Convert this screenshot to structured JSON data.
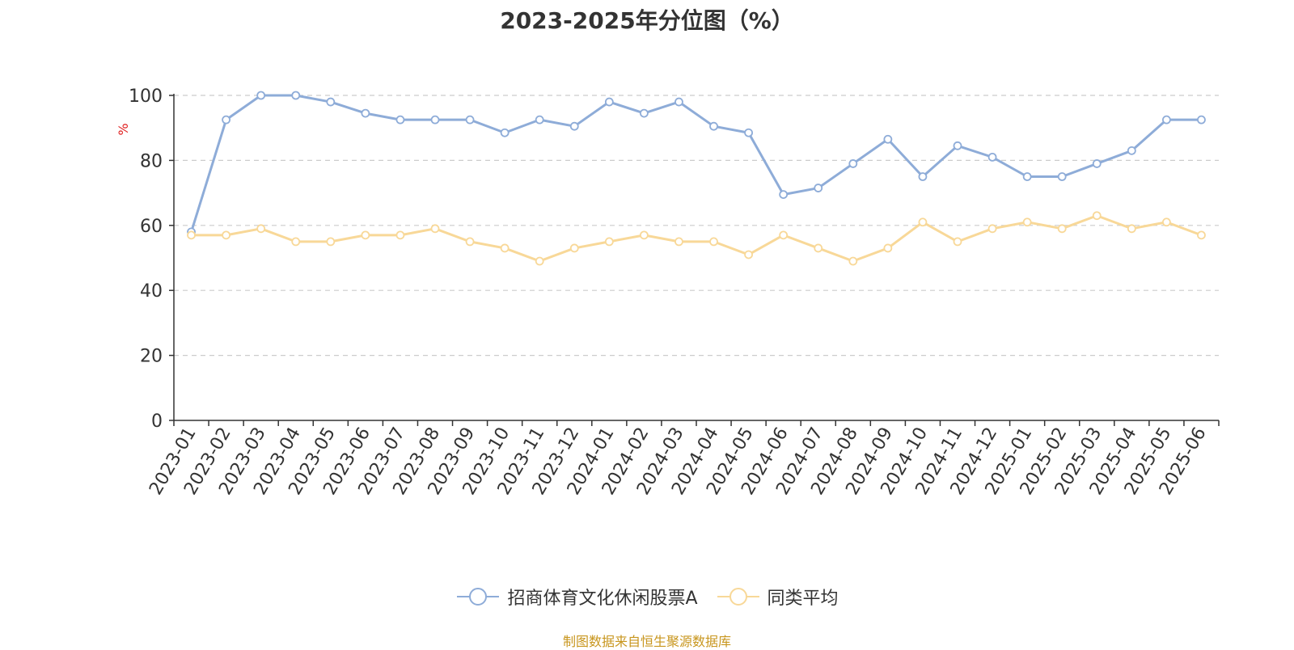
{
  "chart_data": {
    "type": "line",
    "title": "2023-2025年分位图（%）",
    "ylabel": "%",
    "ylim": [
      0,
      100
    ],
    "yticks": [
      0,
      20,
      40,
      60,
      80,
      100
    ],
    "grid": true,
    "legend_position": "bottom",
    "categories": [
      "2023-01",
      "2023-02",
      "2023-03",
      "2023-04",
      "2023-05",
      "2023-06",
      "2023-07",
      "2023-08",
      "2023-09",
      "2023-10",
      "2023-11",
      "2023-12",
      "2024-01",
      "2024-02",
      "2024-03",
      "2024-04",
      "2024-05",
      "2024-06",
      "2024-07",
      "2024-08",
      "2024-09",
      "2024-10",
      "2024-11",
      "2024-12",
      "2025-01",
      "2025-02",
      "2025-03",
      "2025-04",
      "2025-05",
      "2025-06"
    ],
    "series": [
      {
        "name": "招商体育文化休闲股票A",
        "color": "#8eacd8",
        "values": [
          58,
          92.5,
          100,
          100,
          98,
          94.5,
          92.5,
          92.5,
          92.5,
          88.5,
          92.5,
          90.5,
          98,
          94.5,
          98,
          90.5,
          88.5,
          69.5,
          71.5,
          79,
          86.5,
          75,
          84.5,
          81,
          75,
          75,
          79,
          83,
          92.5,
          92.5
        ]
      },
      {
        "name": "同类平均",
        "color": "#f8d898",
        "values": [
          57,
          57,
          59,
          55,
          55,
          57,
          57,
          59,
          55,
          53,
          49,
          53,
          55,
          57,
          55,
          55,
          51,
          57,
          53,
          49,
          53,
          61,
          55,
          59,
          61,
          59,
          63,
          59,
          61,
          57
        ]
      }
    ]
  },
  "footer": {
    "source": "制图数据来自恒生聚源数据库"
  }
}
